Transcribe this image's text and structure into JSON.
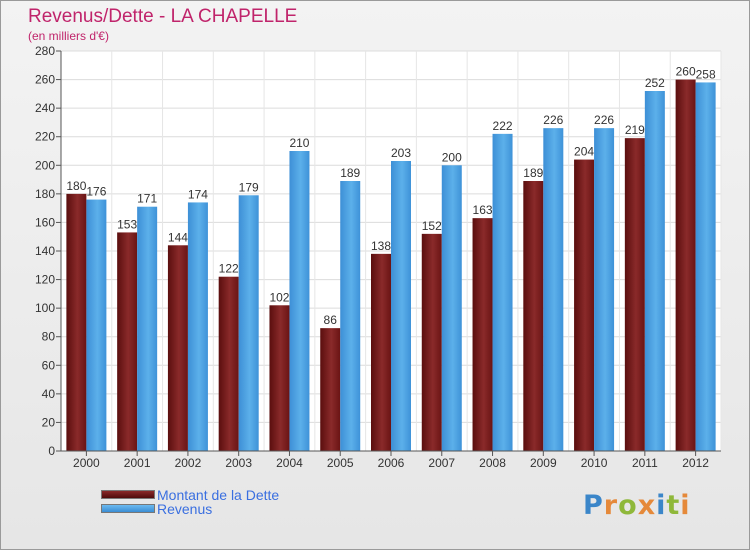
{
  "chart_data": {
    "type": "bar",
    "title": "Revenus/Dette - LA CHAPELLE",
    "subtitle": "(en milliers d'€)",
    "categories": [
      "2000",
      "2001",
      "2002",
      "2003",
      "2004",
      "2005",
      "2006",
      "2007",
      "2008",
      "2009",
      "2010",
      "2011",
      "2012"
    ],
    "series": [
      {
        "name": "Montant de la Dette",
        "color": "#7a1a1a",
        "values": [
          180,
          153,
          144,
          122,
          102,
          86,
          138,
          152,
          163,
          189,
          204,
          219,
          260
        ]
      },
      {
        "name": "Revenus",
        "color": "#4a9fe0",
        "values": [
          176,
          171,
          174,
          179,
          210,
          189,
          203,
          200,
          222,
          226,
          226,
          252,
          258
        ]
      }
    ],
    "ylim": [
      0,
      280
    ],
    "yticks": [
      0,
      20,
      40,
      60,
      80,
      100,
      120,
      140,
      160,
      180,
      200,
      220,
      240,
      260,
      280
    ],
    "grid": true,
    "legend_position": "bottom-left"
  },
  "logo": {
    "text": "Proxiti",
    "letters": [
      "P",
      "r",
      "o",
      "x",
      "i",
      "t",
      "i"
    ],
    "colors": [
      "#3b86c9",
      "#e5893a",
      "#8fb83a",
      "#e5893a",
      "#3b86c9",
      "#8fb83a",
      "#e5893a"
    ]
  }
}
